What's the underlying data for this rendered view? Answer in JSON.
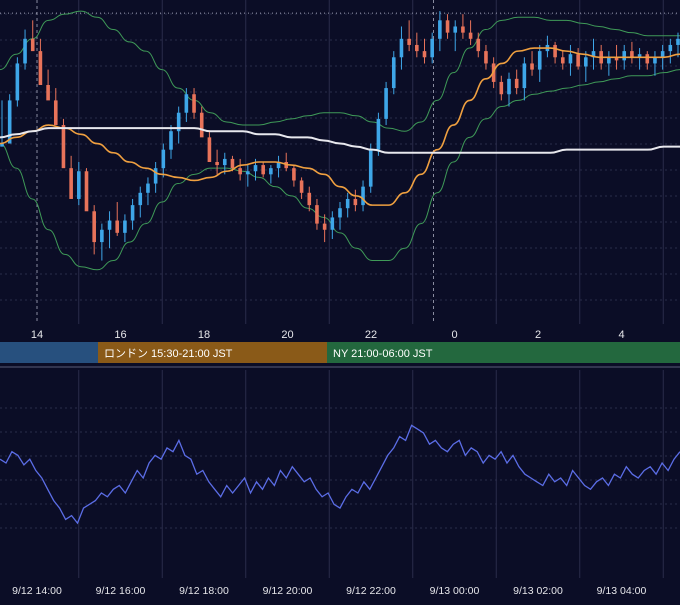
{
  "colors": {
    "background": "#0b0d26",
    "grid": "#2a2d4a",
    "grid_major": "#3b3e5c",
    "candle_up": "#3ea6e8",
    "candle_down": "#e8735a",
    "bollinger": "#3f9a58",
    "ma_short": "#f0a040",
    "ma_long": "#e8e8ee",
    "oscillator": "#5b6de6",
    "session_tokyo": "#27507e",
    "session_london": "#8a5a18",
    "session_ny": "#23683e",
    "session_text": "#ffffff",
    "tick_text": "#e6e6ea",
    "day_divider": "#8a8ca0"
  },
  "chart_data": [
    {
      "type": "candlestick",
      "indicators": [
        "bollinger-bands",
        "moving-average-short",
        "moving-average-long"
      ],
      "x_ticks": [
        "14",
        "16",
        "18",
        "20",
        "22",
        "0",
        "2",
        "4"
      ],
      "grid": true,
      "day_dividers": [
        "9/12 14:00",
        "9/13 00:00"
      ],
      "high_line": true,
      "series": [
        {
          "type": "candles",
          "ohlc": [
            [
              55,
              55,
              70,
              56
            ],
            [
              56,
              58,
              72,
              70
            ],
            [
              70,
              68,
              84,
              82
            ],
            [
              82,
              80,
              93,
              90
            ],
            [
              90,
              88,
              96,
              86
            ],
            [
              86,
              84,
              90,
              75
            ],
            [
              75,
              73,
              80,
              70
            ],
            [
              70,
              66,
              74,
              62
            ],
            [
              62,
              58,
              64,
              48
            ],
            [
              48,
              42,
              52,
              38
            ],
            [
              38,
              36,
              50,
              47
            ],
            [
              47,
              42,
              48,
              34
            ],
            [
              34,
              20,
              36,
              24
            ],
            [
              24,
              18,
              30,
              28
            ],
            [
              28,
              22,
              34,
              31
            ],
            [
              31,
              26,
              37,
              27
            ],
            [
              27,
              24,
              33,
              31
            ],
            [
              31,
              28,
              38,
              36
            ],
            [
              36,
              32,
              42,
              40
            ],
            [
              40,
              36,
              45,
              43
            ],
            [
              43,
              40,
              50,
              48
            ],
            [
              48,
              45,
              56,
              54
            ],
            [
              54,
              51,
              62,
              60
            ],
            [
              60,
              56,
              68,
              66
            ],
            [
              66,
              63,
              74,
              72
            ],
            [
              72,
              64,
              74,
              66
            ],
            [
              66,
              60,
              68,
              58
            ],
            [
              58,
              52,
              60,
              50
            ],
            [
              50,
              46,
              54,
              49
            ],
            [
              49,
              46,
              53,
              51
            ],
            [
              51,
              47,
              52,
              48
            ],
            [
              48,
              44,
              51,
              46
            ],
            [
              46,
              42,
              49,
              47
            ],
            [
              47,
              44,
              51,
              49
            ],
            [
              49,
              45,
              50,
              46
            ],
            [
              46,
              43,
              49,
              48
            ],
            [
              48,
              45,
              52,
              50
            ],
            [
              50,
              47,
              53,
              48
            ],
            [
              48,
              42,
              49,
              44
            ],
            [
              44,
              38,
              45,
              40
            ],
            [
              40,
              34,
              42,
              36
            ],
            [
              36,
              28,
              38,
              30
            ],
            [
              30,
              24,
              33,
              28
            ],
            [
              28,
              25,
              34,
              32
            ],
            [
              32,
              28,
              37,
              35
            ],
            [
              35,
              32,
              40,
              38
            ],
            [
              38,
              34,
              41,
              36
            ],
            [
              36,
              34,
              44,
              42
            ],
            [
              42,
              40,
              56,
              54
            ],
            [
              54,
              52,
              66,
              64
            ],
            [
              64,
              62,
              76,
              74
            ],
            [
              74,
              72,
              86,
              84
            ],
            [
              84,
              80,
              94,
              90
            ],
            [
              90,
              86,
              96,
              88
            ],
            [
              88,
              84,
              92,
              86
            ],
            [
              86,
              82,
              90,
              84
            ],
            [
              84,
              82,
              92,
              90
            ],
            [
              90,
              86,
              99,
              96
            ],
            [
              96,
              90,
              98,
              92
            ],
            [
              92,
              86,
              96,
              94
            ],
            [
              94,
              90,
              98,
              92
            ],
            [
              92,
              88,
              96,
              90
            ],
            [
              90,
              84,
              92,
              86
            ],
            [
              86,
              80,
              88,
              82
            ],
            [
              82,
              74,
              84,
              76
            ],
            [
              76,
              70,
              78,
              72
            ],
            [
              72,
              68,
              79,
              77
            ],
            [
              77,
              72,
              80,
              74
            ],
            [
              74,
              70,
              84,
              82
            ],
            [
              82,
              78,
              86,
              80
            ],
            [
              80,
              76,
              88,
              86
            ],
            [
              86,
              84,
              91,
              88
            ],
            [
              88,
              82,
              89,
              84
            ],
            [
              84,
              80,
              86,
              82
            ],
            [
              82,
              78,
              88,
              85
            ],
            [
              85,
              80,
              87,
              81
            ],
            [
              81,
              76,
              86,
              84
            ],
            [
              84,
              80,
              90,
              86
            ],
            [
              86,
              80,
              88,
              82
            ],
            [
              82,
              78,
              86,
              84
            ],
            [
              84,
              80,
              88,
              83
            ],
            [
              83,
              80,
              88,
              86
            ],
            [
              86,
              82,
              89,
              84
            ],
            [
              84,
              80,
              87,
              85
            ],
            [
              85,
              80,
              86,
              82
            ],
            [
              82,
              78,
              86,
              84
            ],
            [
              84,
              80,
              88,
              86
            ],
            [
              86,
              82,
              90,
              88
            ],
            [
              88,
              84,
              92,
              90
            ]
          ]
        },
        {
          "type": "line",
          "role": "bollinger-upper",
          "values": [
            80,
            85,
            90,
            96,
            98,
            99,
            97,
            93,
            89,
            86,
            80,
            74,
            70,
            66,
            63,
            62,
            62,
            63,
            64,
            65,
            66,
            66,
            65,
            63,
            61,
            60,
            63,
            70,
            79,
            87,
            93,
            96,
            97,
            97,
            96,
            96,
            95,
            94,
            93,
            92,
            91,
            91,
            91
          ]
        },
        {
          "type": "line",
          "role": "bollinger-lower",
          "values": [
            56,
            48,
            38,
            28,
            20,
            16,
            15,
            18,
            24,
            30,
            37,
            43,
            46,
            48,
            48,
            47,
            45,
            42,
            39,
            35,
            32,
            27,
            22,
            18,
            18,
            22,
            30,
            40,
            50,
            58,
            64,
            68,
            70,
            72,
            73,
            74,
            75,
            76,
            77,
            78,
            78,
            79,
            80
          ]
        },
        {
          "type": "line",
          "role": "moving-average-short",
          "values": [
            56,
            58,
            60,
            62,
            61,
            59,
            56,
            53,
            50,
            48,
            46,
            45,
            44,
            45,
            47,
            49,
            50,
            50,
            49,
            48,
            46,
            42,
            39,
            36,
            36,
            40,
            46,
            54,
            62,
            70,
            77,
            82,
            86,
            87,
            87,
            86,
            85,
            84,
            84,
            84,
            84,
            84,
            85
          ]
        },
        {
          "type": "line",
          "role": "moving-average-long",
          "values": [
            58,
            59,
            60,
            61,
            61,
            61,
            61,
            61,
            61,
            61,
            61,
            61,
            61,
            60,
            60,
            60,
            59,
            59,
            58,
            58,
            57,
            56,
            55,
            54,
            53,
            53,
            53,
            53,
            53,
            53,
            53,
            53,
            53,
            53,
            53,
            54,
            54,
            54,
            54,
            54,
            54,
            55,
            55
          ]
        }
      ]
    },
    {
      "type": "table",
      "role": "session-bar",
      "sessions": [
        {
          "name": "tokyo",
          "label": "",
          "start": "9/12 12:30",
          "end": "9/12 15:30"
        },
        {
          "name": "london",
          "label": "ロンドン 15:30-21:00 JST",
          "start": "9/12 15:30",
          "end": "9/12 21:00"
        },
        {
          "name": "ny",
          "label": "NY 21:00-06:00 JST",
          "start": "9/12 21:00",
          "end": "9/13 06:00"
        }
      ]
    },
    {
      "type": "line",
      "role": "oscillator",
      "x_ticks": [
        "9/12 14:00",
        "9/12 16:00",
        "9/12 18:00",
        "9/12 20:00",
        "9/12 22:00",
        "9/13 00:00",
        "9/13 02:00",
        "9/13 04:00"
      ],
      "grid": true,
      "ylim": [
        0,
        100
      ],
      "series": [
        {
          "values": [
            60,
            58,
            64,
            62,
            57,
            60,
            54,
            50,
            44,
            38,
            34,
            28,
            30,
            26,
            34,
            36,
            38,
            42,
            40,
            44,
            46,
            42,
            48,
            54,
            50,
            58,
            62,
            60,
            66,
            64,
            70,
            62,
            60,
            52,
            54,
            48,
            44,
            40,
            46,
            42,
            46,
            50,
            42,
            48,
            44,
            50,
            46,
            54,
            50,
            56,
            52,
            48,
            50,
            44,
            40,
            42,
            36,
            34,
            40,
            44,
            42,
            48,
            44,
            50,
            56,
            62,
            66,
            72,
            70,
            78,
            76,
            74,
            68,
            70,
            66,
            64,
            68,
            70,
            62,
            66,
            64,
            58,
            62,
            60,
            64,
            58,
            62,
            56,
            52,
            50,
            48,
            46,
            52,
            48,
            50,
            46,
            54,
            50,
            46,
            44,
            48,
            50,
            46,
            52,
            50,
            56,
            52,
            50,
            54,
            56,
            52,
            58,
            54,
            60,
            64
          ]
        }
      ]
    }
  ]
}
